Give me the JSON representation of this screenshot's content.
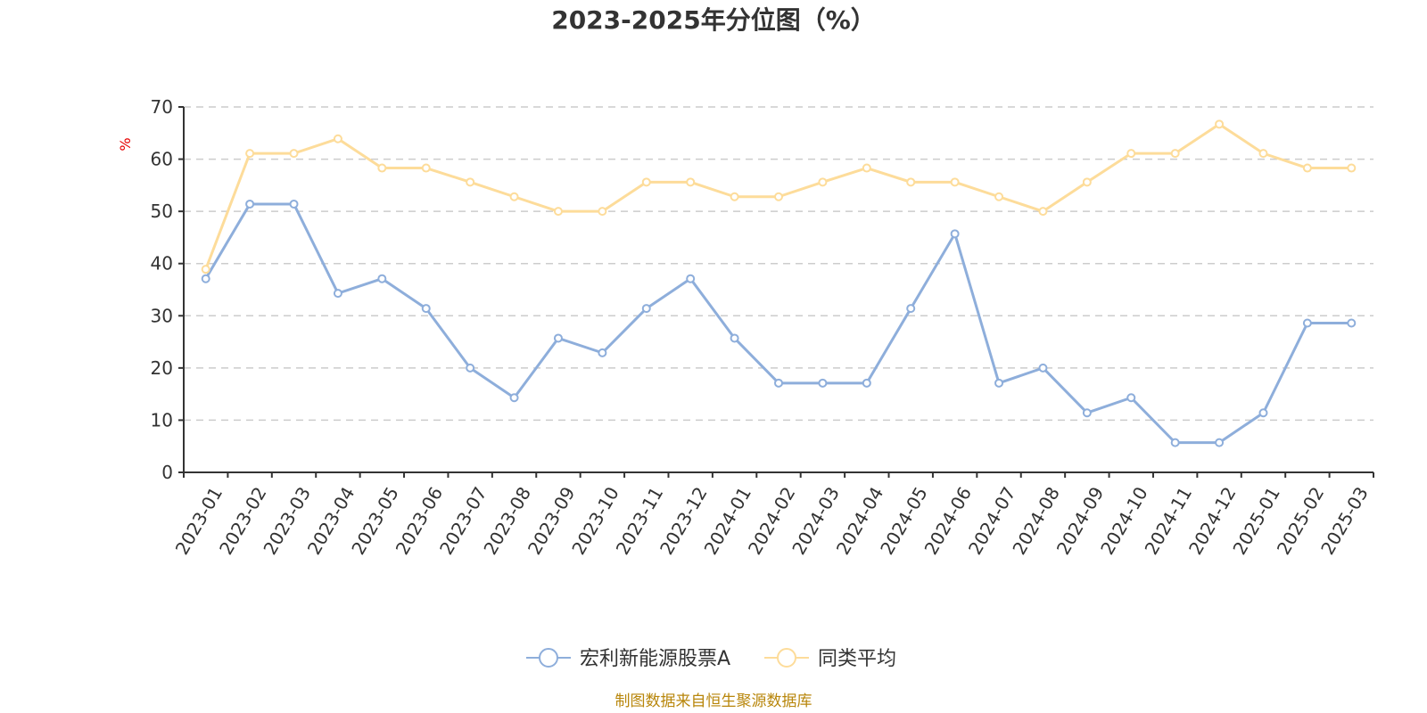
{
  "chart_data": {
    "type": "line",
    "title": "2023-2025年分位图（%）",
    "ylabel": "%",
    "xlabel": "",
    "ylim": [
      0,
      70
    ],
    "yticks": [
      0,
      10,
      20,
      30,
      40,
      50,
      60,
      70
    ],
    "grid": true,
    "legend_position": "bottom",
    "categories": [
      "2023-01",
      "2023-02",
      "2023-03",
      "2023-04",
      "2023-05",
      "2023-06",
      "2023-07",
      "2023-08",
      "2023-09",
      "2023-10",
      "2023-11",
      "2023-12",
      "2024-01",
      "2024-02",
      "2024-03",
      "2024-04",
      "2024-05",
      "2024-06",
      "2024-07",
      "2024-08",
      "2024-09",
      "2024-10",
      "2024-11",
      "2024-12",
      "2025-01",
      "2025-02",
      "2025-03"
    ],
    "series": [
      {
        "name": "宏利新能源股票A",
        "color": "#8eaedb",
        "values": [
          37.1,
          51.4,
          51.4,
          34.3,
          37.1,
          31.4,
          20.0,
          14.3,
          25.7,
          22.9,
          31.4,
          37.1,
          25.7,
          17.1,
          17.1,
          17.1,
          31.4,
          45.7,
          17.1,
          20.0,
          11.4,
          14.3,
          5.7,
          5.7,
          11.4,
          28.6,
          28.6
        ]
      },
      {
        "name": "同类平均",
        "color": "#fddc9a",
        "values": [
          38.9,
          61.1,
          61.1,
          63.9,
          58.3,
          58.3,
          55.6,
          52.8,
          50.0,
          50.0,
          55.6,
          55.6,
          52.8,
          52.8,
          55.6,
          58.3,
          55.6,
          55.6,
          52.8,
          50.0,
          55.6,
          61.1,
          61.1,
          66.7,
          61.1,
          58.3,
          58.3
        ]
      }
    ]
  },
  "source": "制图数据来自恒生聚源数据库"
}
